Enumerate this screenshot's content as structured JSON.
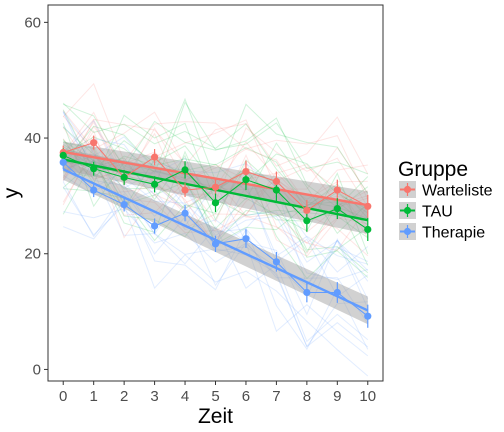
{
  "chart_data": {
    "type": "line",
    "title": "",
    "xlabel": "Zeit",
    "ylabel": "y",
    "xlim": [
      -0.5,
      10.5
    ],
    "ylim": [
      -2,
      63
    ],
    "x_ticks": [
      0,
      1,
      2,
      3,
      4,
      5,
      6,
      7,
      8,
      9,
      10
    ],
    "y_ticks": [
      0,
      20,
      40,
      60
    ],
    "grid": false,
    "legend": {
      "title": "Gruppe",
      "position": "right"
    },
    "series": [
      {
        "name": "Warteliste",
        "color": "#F8766D",
        "x": [
          0,
          1,
          2,
          3,
          4,
          5,
          6,
          7,
          8,
          9,
          10
        ],
        "mean": [
          37.5,
          39.2,
          33.2,
          36.7,
          31.0,
          31.5,
          34.2,
          32.5,
          27.5,
          31.0,
          28.2
        ],
        "err_low": [
          36.3,
          38.0,
          32.0,
          35.3,
          29.8,
          30.1,
          32.3,
          30.8,
          25.7,
          29.2,
          26.2
        ],
        "err_high": [
          38.7,
          40.4,
          34.4,
          38.1,
          32.2,
          32.9,
          36.1,
          34.2,
          29.3,
          32.8,
          30.2
        ],
        "fit": [
          37.6,
          28.4
        ],
        "band_halfwidth": [
          1.8,
          2.4
        ]
      },
      {
        "name": "TAU",
        "color": "#00BA38",
        "x": [
          0,
          1,
          2,
          3,
          4,
          5,
          6,
          7,
          8,
          9,
          10
        ],
        "mean": [
          37.0,
          34.7,
          33.2,
          32.0,
          34.5,
          28.8,
          32.8,
          31.0,
          25.7,
          27.8,
          24.2
        ],
        "err_low": [
          35.8,
          33.5,
          31.9,
          30.6,
          33.0,
          27.2,
          31.0,
          29.0,
          23.8,
          26.0,
          22.2
        ],
        "err_high": [
          38.2,
          35.9,
          34.5,
          33.4,
          36.0,
          30.4,
          34.6,
          33.0,
          27.6,
          29.6,
          26.2
        ],
        "fit": [
          36.3,
          25.8
        ],
        "band_halfwidth": [
          1.8,
          2.4
        ]
      },
      {
        "name": "Therapie",
        "color": "#619CFF",
        "x": [
          0,
          1,
          2,
          3,
          4,
          5,
          6,
          7,
          8,
          9,
          10
        ],
        "mean": [
          35.8,
          31.0,
          28.5,
          24.8,
          27.0,
          21.7,
          22.6,
          18.6,
          13.3,
          13.3,
          9.2
        ],
        "err_low": [
          34.6,
          29.8,
          27.3,
          23.5,
          25.6,
          20.3,
          21.0,
          16.9,
          11.6,
          11.5,
          7.2
        ],
        "err_high": [
          37.0,
          32.2,
          29.7,
          26.1,
          28.4,
          23.1,
          24.2,
          20.3,
          15.0,
          15.1,
          11.2
        ],
        "fit": [
          34.6,
          10.2
        ],
        "band_halfwidth": [
          1.8,
          2.4
        ]
      }
    ]
  }
}
